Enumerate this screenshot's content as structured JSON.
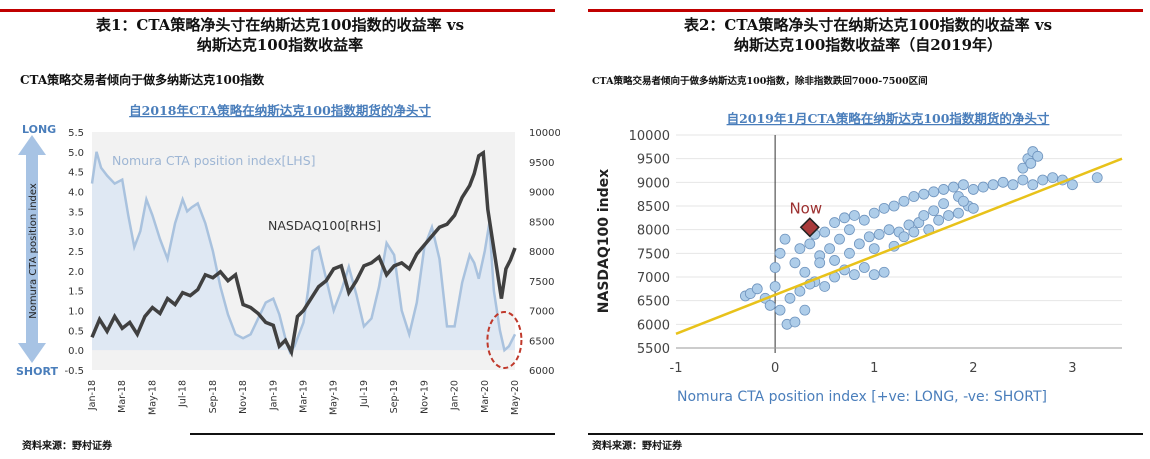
{
  "left": {
    "title_line1": "表1：CTA策略净头寸在纳斯达克100指数的收益率 vs",
    "title_line2": "纳斯达克100指数收益率",
    "subtitle": "CTA策略交易者倾向于做多纳斯达克100指数",
    "source": "资料来源：野村证券",
    "chart_data": {
      "type": "line",
      "title": "自2018年CTA策略在纳斯达克100指数期货的净头寸",
      "ylabel": "Nomura CTA position index",
      "long_label": "LONG",
      "short_label": "SHORT",
      "ylim_left": [
        -0.5,
        5.5
      ],
      "ylim_right": [
        6000,
        10000
      ],
      "left_ticks": [
        "5.5",
        "5.0",
        "4.5",
        "4.0",
        "3.5",
        "3.0",
        "2.5",
        "2.0",
        "1.5",
        "1.0",
        "0.5",
        "0.0",
        "-0.5"
      ],
      "right_ticks": [
        "10000",
        "9500",
        "9000",
        "8500",
        "8000",
        "7500",
        "7000",
        "6500",
        "6000"
      ],
      "x_ticks": [
        "Jan-18",
        "Mar-18",
        "May-18",
        "Jul-18",
        "Sep-18",
        "Nov-18",
        "Jan-19",
        "Mar-19",
        "May-19",
        "Jul-19",
        "Sep-19",
        "Nov-19",
        "Jan-20",
        "Mar-20",
        "May-20"
      ],
      "series": [
        {
          "name": "Nomura CTA position index[LHS]",
          "axis": "left",
          "color": "#a9c2de",
          "x": [
            0,
            0.3,
            0.6,
            1.0,
            1.5,
            2.0,
            2.4,
            2.8,
            3.2,
            3.6,
            4.0,
            4.5,
            5.0,
            5.5,
            6.0,
            6.3,
            6.6,
            7.0,
            7.5,
            8.0,
            8.5,
            9.0,
            9.5,
            10.0,
            10.5,
            11.0,
            11.5,
            12.0,
            12.4,
            12.8,
            13.1,
            13.4,
            13.7,
            14.0,
            14.3,
            14.6,
            15.0,
            15.5,
            16.0,
            16.5,
            17.0,
            17.5,
            18.0,
            18.5,
            19.0,
            19.5,
            20.0,
            20.5,
            21.0,
            21.5,
            22.0,
            22.5,
            23.0,
            23.5,
            24.0,
            24.5,
            25.0,
            25.3,
            25.6,
            26.0,
            26.3,
            26.6,
            27.0,
            27.3,
            27.6,
            28.0
          ],
          "values": [
            4.2,
            5.0,
            4.6,
            4.4,
            4.2,
            4.3,
            3.4,
            2.6,
            3.0,
            3.8,
            3.4,
            2.8,
            2.3,
            3.2,
            3.8,
            3.5,
            3.6,
            3.7,
            3.2,
            2.5,
            1.6,
            0.9,
            0.4,
            0.3,
            0.4,
            0.8,
            1.2,
            1.3,
            0.9,
            0.3,
            -0.05,
            0.1,
            0.4,
            0.7,
            1.5,
            2.5,
            2.6,
            1.8,
            1.0,
            1.5,
            2.1,
            1.4,
            0.6,
            0.8,
            1.6,
            2.7,
            2.4,
            1.0,
            0.4,
            1.2,
            2.6,
            3.1,
            2.3,
            0.6,
            0.6,
            1.7,
            2.4,
            2.2,
            1.8,
            2.5,
            3.2,
            1.5,
            0.5,
            0.0,
            0.1,
            0.4
          ]
        },
        {
          "name": "NASDAQ100[RHS]",
          "axis": "right",
          "color": "#404040",
          "x": [
            0,
            0.5,
            1.0,
            1.5,
            2.0,
            2.5,
            3.0,
            3.5,
            4.0,
            4.5,
            5.0,
            5.5,
            6.0,
            6.5,
            7.0,
            7.5,
            8.0,
            8.5,
            9.0,
            9.5,
            10.0,
            10.5,
            11.0,
            11.5,
            12.0,
            12.4,
            12.8,
            13.2,
            13.6,
            14.0,
            14.5,
            15.0,
            15.5,
            16.0,
            16.5,
            17.0,
            17.5,
            18.0,
            18.5,
            19.0,
            19.5,
            20.0,
            20.5,
            21.0,
            21.5,
            22.0,
            22.5,
            23.0,
            23.5,
            24.0,
            24.5,
            25.0,
            25.3,
            25.6,
            25.9,
            26.2,
            26.5,
            26.8,
            27.1,
            27.4,
            27.7,
            28.0
          ],
          "values": [
            6550,
            6850,
            6650,
            6900,
            6700,
            6800,
            6600,
            6900,
            7050,
            6950,
            7200,
            7100,
            7300,
            7250,
            7350,
            7600,
            7550,
            7650,
            7500,
            7600,
            7100,
            7050,
            6950,
            6800,
            6750,
            6400,
            6500,
            6300,
            6900,
            7000,
            7200,
            7400,
            7500,
            7700,
            7750,
            7300,
            7500,
            7750,
            7800,
            7900,
            7600,
            7750,
            7800,
            7700,
            7950,
            8100,
            8250,
            8400,
            8450,
            8600,
            8900,
            9100,
            9300,
            9600,
            9650,
            8700,
            8200,
            7700,
            7200,
            7700,
            7850,
            8050
          ]
        }
      ],
      "annotations": [
        "Nomura CTA position index[LHS]",
        "NASDAQ100[RHS]"
      ]
    }
  },
  "right": {
    "title_line1": "表2：CTA策略净头寸在纳斯达克100指数的收益率 vs",
    "title_line2": "纳斯达克100指数收益率（自2019年）",
    "subtitle": "CTA策略交易者倾向于做多纳斯达克100指数，除非指数跌回7000-7500区间",
    "source": "资料来源：野村证券",
    "chart_data": {
      "type": "scatter",
      "title": "自2019年1月CTA策略在纳斯达克100指数期货的净头寸",
      "xlabel": "Nomura CTA position index [+ve: LONG, -ve: SHORT]",
      "ylabel": "NASDAQ100 index",
      "xlim": [
        -1,
        3.5
      ],
      "ylim": [
        5500,
        10000
      ],
      "x_ticks": [
        "-1",
        "0",
        "1",
        "2",
        "3"
      ],
      "y_ticks": [
        "10000",
        "9500",
        "9000",
        "8500",
        "8000",
        "7500",
        "7000",
        "6500",
        "6000",
        "5500"
      ],
      "marker_color": "#aecde9",
      "trend_color": "#e8c21a",
      "trend_line": {
        "x": [
          -1,
          3.5
        ],
        "y": [
          5800,
          9500
        ]
      },
      "now_label": "Now",
      "now_point": {
        "x": 0.35,
        "y": 8050
      },
      "clusters": [
        {
          "x": -0.3,
          "y": 6600,
          "n": 1
        },
        {
          "x": -0.25,
          "y": 6650,
          "n": 1
        },
        {
          "x": -0.18,
          "y": 6750,
          "n": 1
        },
        {
          "x": -0.1,
          "y": 6550,
          "n": 1
        },
        {
          "x": -0.05,
          "y": 6400,
          "n": 1
        },
        {
          "x": 0.05,
          "y": 6300,
          "n": 1
        },
        {
          "x": 0.12,
          "y": 6000,
          "n": 1
        },
        {
          "x": 0.2,
          "y": 6050,
          "n": 1
        },
        {
          "x": 0.3,
          "y": 6300,
          "n": 1
        },
        {
          "x": 0.0,
          "y": 7200,
          "n": 1
        },
        {
          "x": 0.05,
          "y": 7500,
          "n": 1
        },
        {
          "x": 0.1,
          "y": 7800,
          "n": 1
        },
        {
          "x": 0.2,
          "y": 7300,
          "n": 1
        },
        {
          "x": 0.3,
          "y": 7100,
          "n": 1
        },
        {
          "x": 0.4,
          "y": 6900,
          "n": 1
        },
        {
          "x": 0.5,
          "y": 6800,
          "n": 1
        },
        {
          "x": 0.6,
          "y": 7000,
          "n": 1
        },
        {
          "x": 0.7,
          "y": 7150,
          "n": 1
        },
        {
          "x": 0.25,
          "y": 7600,
          "n": 1
        },
        {
          "x": 0.35,
          "y": 7700,
          "n": 1
        },
        {
          "x": 0.45,
          "y": 7450,
          "n": 1
        },
        {
          "x": 0.55,
          "y": 7600,
          "n": 1
        },
        {
          "x": 0.65,
          "y": 7800,
          "n": 1
        },
        {
          "x": 0.75,
          "y": 7500,
          "n": 1
        },
        {
          "x": 0.85,
          "y": 7700,
          "n": 1
        },
        {
          "x": 0.95,
          "y": 7850,
          "n": 1
        },
        {
          "x": 1.05,
          "y": 7900,
          "n": 1
        },
        {
          "x": 1.15,
          "y": 8000,
          "n": 1
        },
        {
          "x": 1.25,
          "y": 7950,
          "n": 1
        },
        {
          "x": 1.35,
          "y": 8100,
          "n": 1
        },
        {
          "x": 1.45,
          "y": 8150,
          "n": 1
        },
        {
          "x": 1.55,
          "y": 8000,
          "n": 1
        },
        {
          "x": 1.65,
          "y": 8200,
          "n": 1
        },
        {
          "x": 1.75,
          "y": 8300,
          "n": 1
        },
        {
          "x": 1.85,
          "y": 8350,
          "n": 1
        },
        {
          "x": 1.95,
          "y": 8500,
          "n": 1
        },
        {
          "x": 0.6,
          "y": 8150,
          "n": 1
        },
        {
          "x": 0.7,
          "y": 8250,
          "n": 1
        },
        {
          "x": 0.8,
          "y": 8300,
          "n": 1
        },
        {
          "x": 0.9,
          "y": 8200,
          "n": 1
        },
        {
          "x": 1.0,
          "y": 8350,
          "n": 1
        },
        {
          "x": 1.1,
          "y": 8450,
          "n": 1
        },
        {
          "x": 1.2,
          "y": 8500,
          "n": 1
        },
        {
          "x": 1.3,
          "y": 8600,
          "n": 1
        },
        {
          "x": 1.4,
          "y": 8700,
          "n": 1
        },
        {
          "x": 1.5,
          "y": 8750,
          "n": 1
        },
        {
          "x": 1.6,
          "y": 8800,
          "n": 1
        },
        {
          "x": 1.7,
          "y": 8850,
          "n": 1
        },
        {
          "x": 1.8,
          "y": 8900,
          "n": 1
        },
        {
          "x": 1.9,
          "y": 8950,
          "n": 1
        },
        {
          "x": 2.0,
          "y": 8850,
          "n": 1
        },
        {
          "x": 2.1,
          "y": 8900,
          "n": 1
        },
        {
          "x": 2.2,
          "y": 8950,
          "n": 1
        },
        {
          "x": 2.3,
          "y": 9000,
          "n": 1
        },
        {
          "x": 2.4,
          "y": 8950,
          "n": 1
        },
        {
          "x": 2.5,
          "y": 9050,
          "n": 1
        },
        {
          "x": 2.6,
          "y": 8950,
          "n": 1
        },
        {
          "x": 2.7,
          "y": 9050,
          "n": 1
        },
        {
          "x": 2.8,
          "y": 9100,
          "n": 1
        },
        {
          "x": 2.9,
          "y": 9050,
          "n": 1
        },
        {
          "x": 3.0,
          "y": 8950,
          "n": 1
        },
        {
          "x": 3.25,
          "y": 9100,
          "n": 1
        },
        {
          "x": 2.5,
          "y": 9300,
          "n": 1
        },
        {
          "x": 2.55,
          "y": 9500,
          "n": 1
        },
        {
          "x": 2.6,
          "y": 9650,
          "n": 1
        },
        {
          "x": 2.65,
          "y": 9550,
          "n": 1
        },
        {
          "x": 2.58,
          "y": 9400,
          "n": 1
        },
        {
          "x": 0.4,
          "y": 7900,
          "n": 1
        },
        {
          "x": 0.5,
          "y": 7950,
          "n": 1
        },
        {
          "x": 1.5,
          "y": 8300,
          "n": 1
        },
        {
          "x": 1.6,
          "y": 8400,
          "n": 1
        },
        {
          "x": 1.7,
          "y": 8550,
          "n": 1
        },
        {
          "x": 1.0,
          "y": 7600,
          "n": 1
        },
        {
          "x": 1.1,
          "y": 7100,
          "n": 1
        },
        {
          "x": 1.0,
          "y": 7050,
          "n": 1
        },
        {
          "x": 0.9,
          "y": 7200,
          "n": 1
        },
        {
          "x": 0.8,
          "y": 7050,
          "n": 1
        },
        {
          "x": 1.2,
          "y": 7650,
          "n": 1
        },
        {
          "x": 0.15,
          "y": 6550,
          "n": 1
        },
        {
          "x": 0.25,
          "y": 6700,
          "n": 1
        },
        {
          "x": 0.35,
          "y": 6850,
          "n": 1
        },
        {
          "x": 0.45,
          "y": 7300,
          "n": 1
        },
        {
          "x": 0.6,
          "y": 7350,
          "n": 1
        },
        {
          "x": 0.75,
          "y": 8000,
          "n": 1
        },
        {
          "x": 1.85,
          "y": 8700,
          "n": 1
        },
        {
          "x": 1.9,
          "y": 8600,
          "n": 1
        },
        {
          "x": 2.0,
          "y": 8450,
          "n": 1
        },
        {
          "x": 1.3,
          "y": 7850,
          "n": 1
        },
        {
          "x": 1.4,
          "y": 7950,
          "n": 1
        },
        {
          "x": 0.0,
          "y": 6800,
          "n": 1
        }
      ]
    }
  }
}
